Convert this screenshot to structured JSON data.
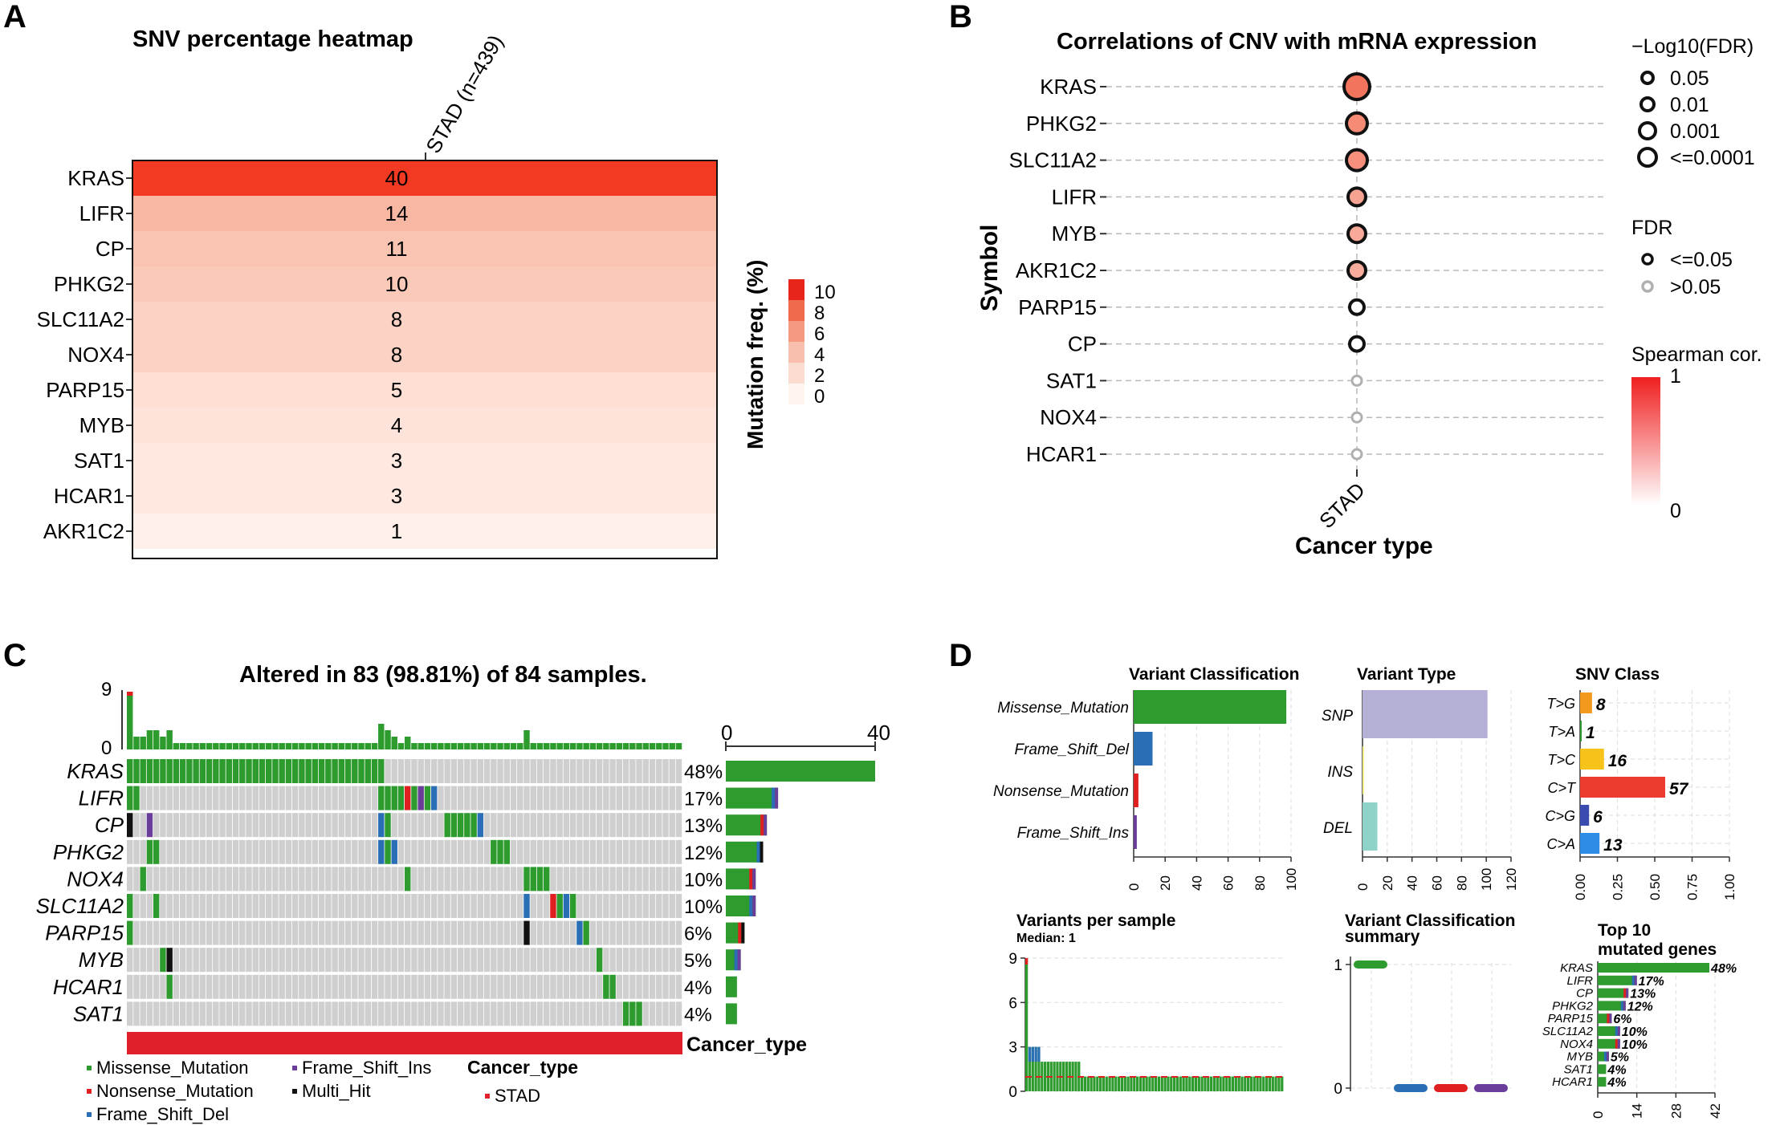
{
  "colors": {
    "missense": "#2E9B2E",
    "nonsense": "#E02020",
    "frame_shift_del": "#2A6FB5",
    "frame_shift_ins": "#6A3D9A",
    "multi_hit": "#111111",
    "grey_cell": "#CFCFCF",
    "stad": "#E0202A",
    "snp": "#B5B0D6",
    "ins": "#F3EE8A",
    "del": "#8FD3C8",
    "t_g": "#F39A1E",
    "t_a": "#2E9B2E",
    "t_c": "#F7C31B",
    "c_t": "#EE3B2F",
    "c_g": "#3A4BB0",
    "c_a": "#2E8BE6"
  },
  "panel_a": {
    "letter": "A",
    "chart_data": {
      "type": "heatmap",
      "title": "SNV percentage heatmap",
      "column": "STAD (n=439)",
      "genes": [
        "KRAS",
        "LIFR",
        "CP",
        "PHKG2",
        "SLC11A2",
        "NOX4",
        "PARP15",
        "MYB",
        "SAT1",
        "HCAR1",
        "AKR1C2"
      ],
      "values": [
        40,
        14,
        11,
        10,
        8,
        8,
        5,
        4,
        3,
        3,
        1
      ],
      "legend_title": "Mutation freq. (%)",
      "legend_ticks": [
        "10",
        "8",
        "6",
        "4",
        "2",
        "0"
      ]
    }
  },
  "panel_b": {
    "letter": "B",
    "chart_data": {
      "type": "scatter",
      "title": "Correlations of CNV with mRNA expression",
      "ylabel": "Symbol",
      "xlabel": "Cancer type",
      "x_category": "STAD",
      "genes": [
        "KRAS",
        "PHKG2",
        "SLC11A2",
        "LIFR",
        "MYB",
        "AKR1C2",
        "PARP15",
        "CP",
        "SAT1",
        "NOX4",
        "HCAR1"
      ],
      "neg_log10_fdr": [
        5,
        4,
        4,
        3,
        3,
        3,
        2,
        2,
        1,
        1,
        1
      ],
      "significant": [
        true,
        true,
        true,
        true,
        true,
        true,
        true,
        true,
        false,
        false,
        false
      ],
      "spearman_cor": [
        0.45,
        0.38,
        0.36,
        0.3,
        0.28,
        0.27,
        0.0,
        0.0,
        0.0,
        0.0,
        0.0
      ],
      "size_legend_title": "−Log10(FDR)",
      "size_legend_items": [
        "0.05",
        "0.01",
        "0.001",
        "<=0.0001"
      ],
      "fdr_legend_title": "FDR",
      "fdr_legend_items": [
        "<=0.05",
        ">0.05"
      ],
      "color_legend_title": "Spearman cor.",
      "color_legend_max": "1",
      "color_legend_min": "0"
    }
  },
  "panel_c": {
    "letter": "C",
    "chart_data": {
      "type": "bar",
      "title": "Altered in 83 (98.81%) of 84 samples.",
      "n_samples": 84,
      "tmb_axis_ticks": [
        "9",
        "0"
      ],
      "tmb_max": 9,
      "genes": [
        "KRAS",
        "LIFR",
        "CP",
        "PHKG2",
        "NOX4",
        "SLC11A2",
        "PARP15",
        "MYB",
        "HCAR1",
        "SAT1"
      ],
      "percentages": [
        "48%",
        "17%",
        "13%",
        "12%",
        "10%",
        "10%",
        "6%",
        "5%",
        "4%",
        "4%"
      ],
      "gene_counts": [
        40,
        14,
        11,
        10,
        8,
        8,
        5,
        4,
        3,
        3
      ],
      "gene_count_axis_ticks": [
        "0",
        "40"
      ],
      "gene_count_max": 40,
      "cancer_type_label": "Cancer_type",
      "legend_items": [
        "Missense_Mutation",
        "Nonsense_Mutation",
        "Frame_Shift_Del",
        "Frame_Shift_Ins",
        "Multi_Hit"
      ],
      "legend_cancer_title": "Cancer_type",
      "legend_cancer_item": "STAD"
    }
  },
  "panel_d": {
    "letter": "D",
    "chart_data": [
      {
        "type": "bar",
        "title": "Variant Classification",
        "categories": [
          "Missense_Mutation",
          "Frame_Shift_Del",
          "Nonsense_Mutation",
          "Frame_Shift_Ins"
        ],
        "values": [
          97,
          12,
          3,
          2
        ],
        "xlim": [
          0,
          100
        ],
        "ticks": [
          "0",
          "20",
          "40",
          "60",
          "80",
          "100"
        ]
      },
      {
        "type": "bar",
        "title": "Variant Type",
        "categories": [
          "SNP",
          "INS",
          "DEL"
        ],
        "values": [
          101,
          1,
          12
        ],
        "xlim": [
          0,
          120
        ],
        "ticks": [
          "0",
          "20",
          "40",
          "60",
          "80",
          "100",
          "120"
        ]
      },
      {
        "type": "bar",
        "title": "SNV Class",
        "categories": [
          "T>G",
          "T>A",
          "T>C",
          "C>T",
          "C>G",
          "C>A"
        ],
        "values": [
          0.08,
          0.01,
          0.16,
          0.57,
          0.06,
          0.13
        ],
        "labels": [
          "8",
          "1",
          "16",
          "57",
          "6",
          "13"
        ],
        "xlim": [
          0,
          1
        ],
        "ticks": [
          "0.00",
          "0.25",
          "0.50",
          "0.75",
          "1.00"
        ]
      },
      {
        "type": "bar",
        "title": "Variants per sample",
        "subtitle": "Median: 1",
        "ylim": [
          0,
          9
        ],
        "ticks": [
          "9",
          "6",
          "3",
          "0"
        ]
      },
      {
        "type": "scatter",
        "title": "Variant Classification",
        "title2": "summary",
        "ticks": [
          "1",
          "0"
        ]
      },
      {
        "type": "bar",
        "title": "Top 10",
        "title2": "mutated genes",
        "categories": [
          "KRAS",
          "LIFR",
          "CP",
          "PHKG2",
          "PARP15",
          "SLC11A2",
          "NOX4",
          "MYB",
          "SAT1",
          "HCAR1"
        ],
        "values": [
          40,
          14,
          11,
          10,
          5,
          8,
          8,
          4,
          3,
          3
        ],
        "labels": [
          "48%",
          "17%",
          "13%",
          "12%",
          "6%",
          "10%",
          "10%",
          "5%",
          "4%",
          "4%"
        ],
        "xlim": [
          0,
          42
        ],
        "ticks": [
          "0",
          "14",
          "28",
          "42"
        ]
      }
    ]
  }
}
